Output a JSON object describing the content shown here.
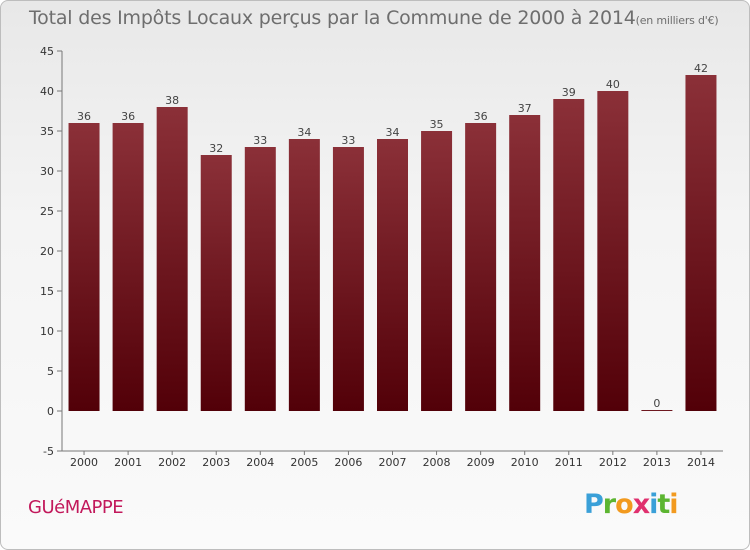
{
  "chart_data": {
    "type": "bar",
    "title": "Total des Impôts Locaux perçus par la Commune de 2000 à 2014",
    "unit_note": "(en milliers d'€)",
    "categories": [
      "2000",
      "2001",
      "2002",
      "2003",
      "2004",
      "2005",
      "2006",
      "2007",
      "2008",
      "2009",
      "2010",
      "2011",
      "2012",
      "2013",
      "2014"
    ],
    "values": [
      36,
      36,
      38,
      32,
      33,
      34,
      33,
      34,
      35,
      36,
      37,
      39,
      40,
      0,
      42
    ],
    "value_labels": [
      "36",
      "36",
      "38",
      "32",
      "33",
      "34",
      "33",
      "34",
      "35",
      "36",
      "37",
      "39",
      "40",
      "0",
      "42"
    ],
    "ylim": [
      -5,
      45
    ],
    "yticks": [
      -5,
      0,
      5,
      10,
      15,
      20,
      25,
      30,
      35,
      40,
      45
    ],
    "ytick_labels": [
      "-5",
      "0",
      "5",
      "10",
      "15",
      "20",
      "25",
      "30",
      "35",
      "40",
      "45"
    ],
    "xlabel": "",
    "ylabel": "",
    "grid": false,
    "colors": {
      "bar_top": "#8b3038",
      "bar_bottom": "#520008"
    }
  },
  "footer": {
    "commune": "GUéMAPPE",
    "brand": [
      "P",
      "r",
      "o",
      "x",
      "i",
      "t",
      "i"
    ]
  }
}
